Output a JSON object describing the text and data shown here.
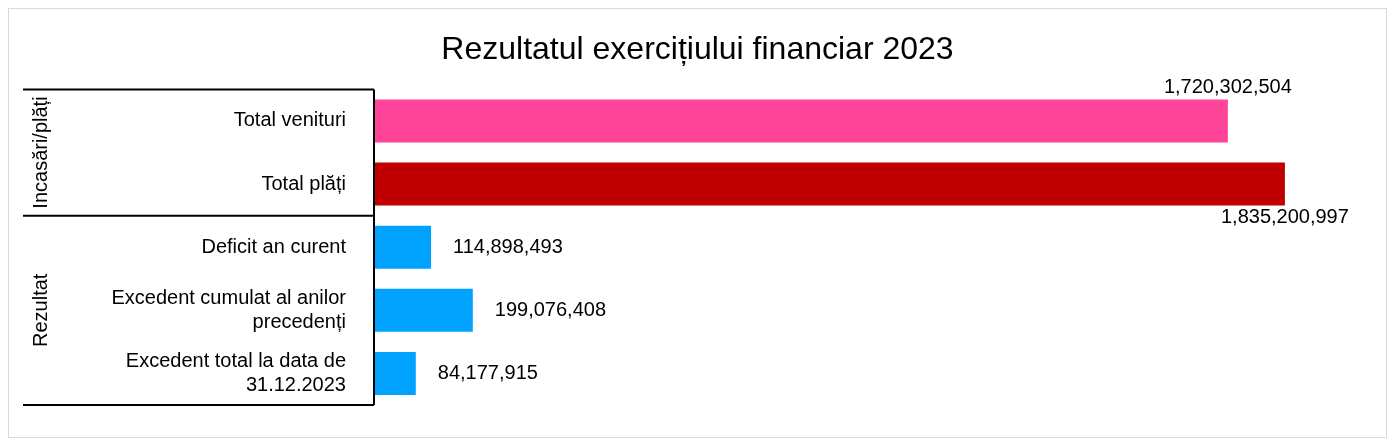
{
  "chart_data": {
    "type": "bar",
    "orientation": "horizontal",
    "title": "Rezultatul exercițiului financiar 2023",
    "categories": [
      "Total venituri",
      "Total plăți",
      "Deficit an curent",
      "Excedent cumulat al anilor precedenți",
      "Excedent total la data de 31.12.2023"
    ],
    "values": [
      1720302504,
      1835200997,
      114898493,
      199076408,
      84177915
    ],
    "value_labels": [
      "1,720,302,504",
      "1,835,200,997",
      "114,898,493",
      "199,076,408",
      "84,177,915"
    ],
    "colors": [
      "#ff4499",
      "#c00000",
      "#00a2ff",
      "#00a2ff",
      "#00a2ff"
    ],
    "annotations": [
      "Incasări/plăți",
      "Rezultat"
    ],
    "legend": false
  }
}
